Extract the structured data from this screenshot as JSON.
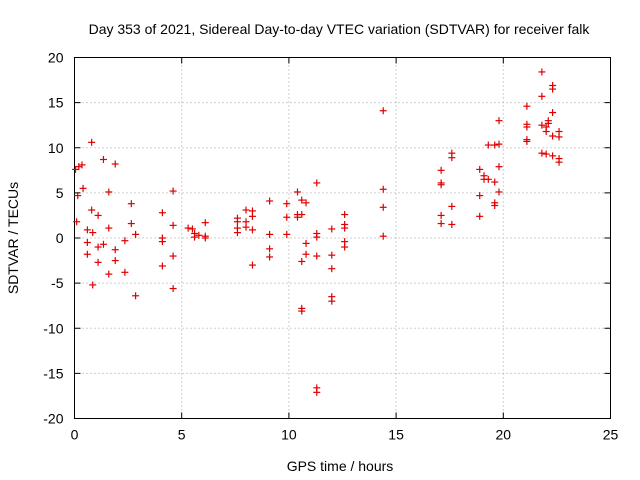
{
  "chart_data": {
    "type": "scatter",
    "title": "Day 353 of 2021, Sidereal Day-to-day VTEC variation (SDTVAR) for receiver falk",
    "xlabel": "GPS time / hours",
    "ylabel": "SDTVAR / TECUs",
    "xlim": [
      0,
      25
    ],
    "ylim": [
      -20,
      20
    ],
    "xticks": [
      0,
      5,
      10,
      15,
      20,
      25
    ],
    "yticks": [
      -20,
      -15,
      -10,
      -5,
      0,
      5,
      10,
      15,
      20
    ],
    "grid": true,
    "marker": "plus",
    "color": "#e00000",
    "series": [
      {
        "name": "SDTVAR",
        "points": [
          [
            0.05,
            7.6
          ],
          [
            0.1,
            1.8
          ],
          [
            0.15,
            4.7
          ],
          [
            0.2,
            7.9
          ],
          [
            0.35,
            8.1
          ],
          [
            0.4,
            5.5
          ],
          [
            0.6,
            -0.5
          ],
          [
            0.6,
            -1.8
          ],
          [
            0.6,
            0.9
          ],
          [
            0.8,
            3.1
          ],
          [
            0.8,
            10.6
          ],
          [
            0.85,
            0.6
          ],
          [
            0.85,
            -5.2
          ],
          [
            1.1,
            2.5
          ],
          [
            1.1,
            -2.7
          ],
          [
            1.1,
            -1.0
          ],
          [
            1.35,
            8.7
          ],
          [
            1.35,
            -0.7
          ],
          [
            1.6,
            5.1
          ],
          [
            1.6,
            -4.0
          ],
          [
            1.6,
            1.1
          ],
          [
            1.9,
            8.2
          ],
          [
            1.9,
            -1.3
          ],
          [
            1.9,
            -2.5
          ],
          [
            2.35,
            -0.3
          ],
          [
            2.35,
            -3.8
          ],
          [
            2.65,
            3.8
          ],
          [
            2.65,
            1.6
          ],
          [
            2.85,
            -6.4
          ],
          [
            2.85,
            0.4
          ],
          [
            4.1,
            2.8
          ],
          [
            4.1,
            0.0
          ],
          [
            4.1,
            -0.4
          ],
          [
            4.1,
            -3.1
          ],
          [
            4.6,
            5.2
          ],
          [
            4.6,
            1.4
          ],
          [
            4.6,
            -2.0
          ],
          [
            4.6,
            -5.6
          ],
          [
            5.3,
            1.1
          ],
          [
            5.5,
            1.0
          ],
          [
            5.6,
            0.5
          ],
          [
            5.6,
            0.1
          ],
          [
            5.8,
            0.3
          ],
          [
            6.1,
            1.7
          ],
          [
            6.1,
            0.2
          ],
          [
            6.1,
            0.0
          ],
          [
            7.6,
            2.2
          ],
          [
            7.6,
            1.8
          ],
          [
            7.6,
            1.1
          ],
          [
            7.6,
            0.6
          ],
          [
            8.0,
            3.1
          ],
          [
            8.0,
            1.8
          ],
          [
            8.0,
            1.2
          ],
          [
            8.3,
            3.0
          ],
          [
            8.3,
            2.4
          ],
          [
            8.3,
            0.9
          ],
          [
            8.3,
            -3.0
          ],
          [
            9.1,
            4.1
          ],
          [
            9.1,
            0.4
          ],
          [
            9.1,
            -1.2
          ],
          [
            9.1,
            -2.1
          ],
          [
            9.9,
            3.8
          ],
          [
            9.9,
            2.3
          ],
          [
            9.9,
            0.4
          ],
          [
            10.4,
            5.1
          ],
          [
            10.4,
            2.6
          ],
          [
            10.4,
            2.3
          ],
          [
            10.6,
            4.2
          ],
          [
            10.6,
            2.6
          ],
          [
            10.6,
            -2.6
          ],
          [
            10.6,
            -7.8
          ],
          [
            10.6,
            -8.1
          ],
          [
            10.8,
            3.9
          ],
          [
            10.8,
            -0.6
          ],
          [
            10.8,
            -1.8
          ],
          [
            11.3,
            6.1
          ],
          [
            11.3,
            0.5
          ],
          [
            11.3,
            0.1
          ],
          [
            11.3,
            -2.0
          ],
          [
            11.3,
            -16.6
          ],
          [
            11.3,
            -17.1
          ],
          [
            12.0,
            1.0
          ],
          [
            12.0,
            -1.9
          ],
          [
            12.0,
            -3.4
          ],
          [
            12.0,
            -6.5
          ],
          [
            12.0,
            -7.0
          ],
          [
            12.6,
            2.6
          ],
          [
            12.6,
            1.5
          ],
          [
            12.6,
            1.1
          ],
          [
            12.6,
            -0.4
          ],
          [
            12.6,
            -1.0
          ],
          [
            14.4,
            14.1
          ],
          [
            14.4,
            5.4
          ],
          [
            14.4,
            3.4
          ],
          [
            14.4,
            0.2
          ],
          [
            17.1,
            7.5
          ],
          [
            17.1,
            6.1
          ],
          [
            17.1,
            5.9
          ],
          [
            17.1,
            2.5
          ],
          [
            17.1,
            1.6
          ],
          [
            17.6,
            9.4
          ],
          [
            17.6,
            8.9
          ],
          [
            17.6,
            3.5
          ],
          [
            17.6,
            1.5
          ],
          [
            18.9,
            7.6
          ],
          [
            18.9,
            4.7
          ],
          [
            18.9,
            2.4
          ],
          [
            19.1,
            6.9
          ],
          [
            19.1,
            6.5
          ],
          [
            19.3,
            10.3
          ],
          [
            19.3,
            6.5
          ],
          [
            19.6,
            10.3
          ],
          [
            19.6,
            6.2
          ],
          [
            19.6,
            3.9
          ],
          [
            19.6,
            3.6
          ],
          [
            19.8,
            13.0
          ],
          [
            19.8,
            10.4
          ],
          [
            19.8,
            7.9
          ],
          [
            19.8,
            5.1
          ],
          [
            21.1,
            14.6
          ],
          [
            21.1,
            12.6
          ],
          [
            21.1,
            12.3
          ],
          [
            21.1,
            10.9
          ],
          [
            21.1,
            10.7
          ],
          [
            21.8,
            18.4
          ],
          [
            21.8,
            15.7
          ],
          [
            21.8,
            12.5
          ],
          [
            21.8,
            9.4
          ],
          [
            22.0,
            12.3
          ],
          [
            22.0,
            11.8
          ],
          [
            22.0,
            9.3
          ],
          [
            22.1,
            13.0
          ],
          [
            22.1,
            12.7
          ],
          [
            22.3,
            16.9
          ],
          [
            22.3,
            16.5
          ],
          [
            22.3,
            13.9
          ],
          [
            22.3,
            11.3
          ],
          [
            22.3,
            9.1
          ],
          [
            22.6,
            11.8
          ],
          [
            22.6,
            11.2
          ],
          [
            22.6,
            8.8
          ],
          [
            22.6,
            8.4
          ]
        ]
      }
    ]
  }
}
